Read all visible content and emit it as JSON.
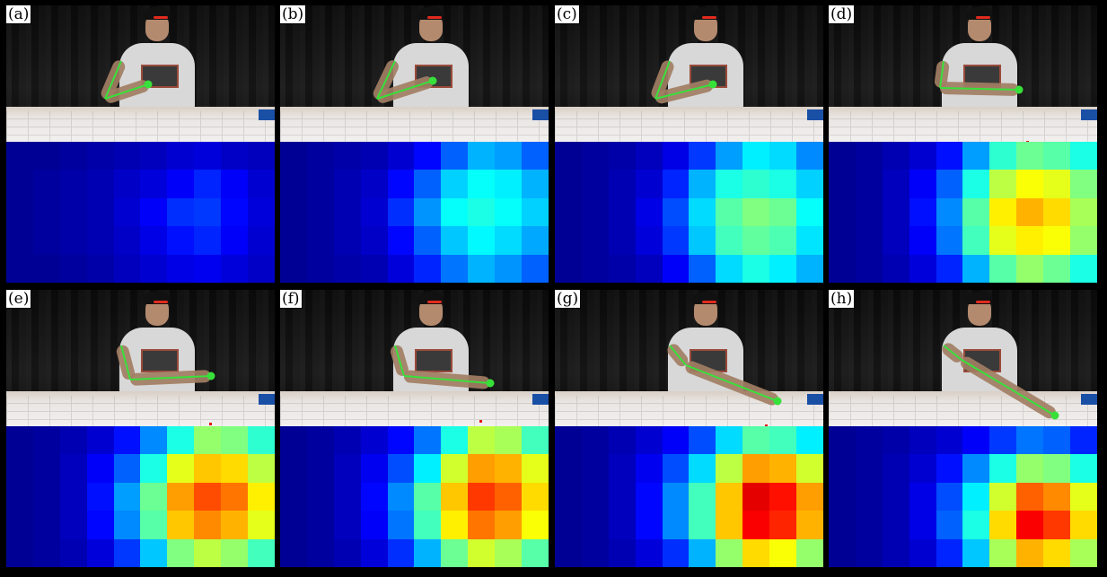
{
  "panels": [
    {
      "label": "(a)",
      "heatmap": [
        [
          0.02,
          0.02,
          0.03,
          0.04,
          0.05,
          0.06,
          0.08,
          0.09,
          0.07,
          0.06
        ],
        [
          0.02,
          0.03,
          0.04,
          0.05,
          0.07,
          0.09,
          0.12,
          0.16,
          0.12,
          0.08
        ],
        [
          0.02,
          0.03,
          0.04,
          0.05,
          0.08,
          0.12,
          0.17,
          0.18,
          0.13,
          0.09
        ],
        [
          0.02,
          0.03,
          0.04,
          0.05,
          0.07,
          0.1,
          0.14,
          0.16,
          0.12,
          0.08
        ],
        [
          0.02,
          0.02,
          0.03,
          0.04,
          0.06,
          0.08,
          0.1,
          0.11,
          0.09,
          0.07
        ]
      ]
    },
    {
      "label": "(b)",
      "heatmap": [
        [
          0.02,
          0.03,
          0.04,
          0.05,
          0.08,
          0.13,
          0.22,
          0.3,
          0.28,
          0.22
        ],
        [
          0.02,
          0.03,
          0.05,
          0.07,
          0.13,
          0.22,
          0.33,
          0.38,
          0.36,
          0.3
        ],
        [
          0.02,
          0.03,
          0.05,
          0.08,
          0.17,
          0.27,
          0.38,
          0.4,
          0.38,
          0.33
        ],
        [
          0.02,
          0.03,
          0.05,
          0.07,
          0.13,
          0.22,
          0.32,
          0.37,
          0.34,
          0.29
        ],
        [
          0.02,
          0.03,
          0.04,
          0.05,
          0.09,
          0.16,
          0.24,
          0.3,
          0.27,
          0.22
        ]
      ]
    },
    {
      "label": "(c)",
      "heatmap": [
        [
          0.02,
          0.03,
          0.04,
          0.06,
          0.1,
          0.18,
          0.28,
          0.36,
          0.34,
          0.26
        ],
        [
          0.02,
          0.03,
          0.05,
          0.08,
          0.16,
          0.3,
          0.4,
          0.42,
          0.4,
          0.33
        ],
        [
          0.02,
          0.03,
          0.05,
          0.1,
          0.2,
          0.34,
          0.46,
          0.5,
          0.48,
          0.38
        ],
        [
          0.02,
          0.03,
          0.05,
          0.09,
          0.18,
          0.32,
          0.44,
          0.47,
          0.45,
          0.35
        ],
        [
          0.02,
          0.03,
          0.04,
          0.06,
          0.12,
          0.22,
          0.34,
          0.4,
          0.36,
          0.3
        ]
      ]
    },
    {
      "label": "(d)",
      "heatmap": [
        [
          0.02,
          0.03,
          0.05,
          0.08,
          0.14,
          0.28,
          0.42,
          0.48,
          0.46,
          0.4
        ],
        [
          0.02,
          0.03,
          0.06,
          0.12,
          0.22,
          0.4,
          0.56,
          0.62,
          0.6,
          0.5
        ],
        [
          0.02,
          0.03,
          0.06,
          0.14,
          0.26,
          0.46,
          0.64,
          0.7,
          0.66,
          0.54
        ],
        [
          0.02,
          0.03,
          0.06,
          0.12,
          0.24,
          0.44,
          0.6,
          0.64,
          0.62,
          0.52
        ],
        [
          0.02,
          0.03,
          0.05,
          0.09,
          0.16,
          0.3,
          0.46,
          0.52,
          0.48,
          0.4
        ]
      ]
    },
    {
      "label": "(e)",
      "heatmap": [
        [
          0.02,
          0.03,
          0.05,
          0.08,
          0.14,
          0.26,
          0.4,
          0.52,
          0.5,
          0.42
        ],
        [
          0.02,
          0.03,
          0.06,
          0.12,
          0.22,
          0.4,
          0.6,
          0.68,
          0.66,
          0.56
        ],
        [
          0.02,
          0.03,
          0.06,
          0.14,
          0.28,
          0.48,
          0.72,
          0.8,
          0.76,
          0.64
        ],
        [
          0.02,
          0.03,
          0.06,
          0.13,
          0.26,
          0.46,
          0.68,
          0.74,
          0.7,
          0.6
        ],
        [
          0.02,
          0.03,
          0.05,
          0.09,
          0.18,
          0.32,
          0.5,
          0.56,
          0.52,
          0.44
        ]
      ]
    },
    {
      "label": "(f)",
      "heatmap": [
        [
          0.02,
          0.03,
          0.05,
          0.08,
          0.13,
          0.24,
          0.4,
          0.56,
          0.54,
          0.44
        ],
        [
          0.02,
          0.03,
          0.06,
          0.11,
          0.2,
          0.36,
          0.58,
          0.72,
          0.7,
          0.6
        ],
        [
          0.02,
          0.03,
          0.06,
          0.13,
          0.26,
          0.46,
          0.68,
          0.82,
          0.78,
          0.66
        ],
        [
          0.02,
          0.03,
          0.06,
          0.12,
          0.24,
          0.44,
          0.64,
          0.76,
          0.72,
          0.62
        ],
        [
          0.02,
          0.03,
          0.05,
          0.09,
          0.17,
          0.3,
          0.48,
          0.58,
          0.54,
          0.46
        ]
      ]
    },
    {
      "label": "(g)",
      "heatmap": [
        [
          0.02,
          0.03,
          0.05,
          0.08,
          0.12,
          0.2,
          0.34,
          0.46,
          0.44,
          0.36
        ],
        [
          0.02,
          0.03,
          0.06,
          0.11,
          0.2,
          0.34,
          0.56,
          0.72,
          0.7,
          0.58
        ],
        [
          0.02,
          0.03,
          0.06,
          0.13,
          0.26,
          0.44,
          0.68,
          0.9,
          0.86,
          0.72
        ],
        [
          0.02,
          0.03,
          0.06,
          0.13,
          0.26,
          0.44,
          0.68,
          0.88,
          0.84,
          0.7
        ],
        [
          0.02,
          0.03,
          0.05,
          0.09,
          0.17,
          0.3,
          0.52,
          0.66,
          0.62,
          0.52
        ]
      ]
    },
    {
      "label": "(h)",
      "heatmap": [
        [
          0.02,
          0.03,
          0.04,
          0.06,
          0.08,
          0.12,
          0.18,
          0.24,
          0.22,
          0.16
        ],
        [
          0.02,
          0.03,
          0.05,
          0.08,
          0.14,
          0.26,
          0.4,
          0.52,
          0.5,
          0.4
        ],
        [
          0.02,
          0.03,
          0.05,
          0.1,
          0.2,
          0.36,
          0.58,
          0.78,
          0.74,
          0.6
        ],
        [
          0.02,
          0.03,
          0.05,
          0.1,
          0.22,
          0.4,
          0.66,
          0.88,
          0.82,
          0.66
        ],
        [
          0.02,
          0.03,
          0.05,
          0.08,
          0.16,
          0.32,
          0.54,
          0.7,
          0.66,
          0.54
        ]
      ]
    }
  ]
}
